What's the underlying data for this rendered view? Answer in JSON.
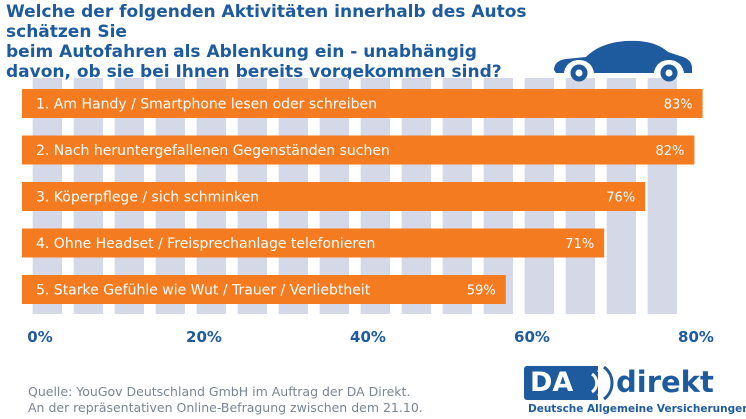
{
  "question": {
    "lines": [
      "Welche der folgenden Aktivitäten innerhalb des Autos schätzen Sie",
      "beim Autofahren als Ablenkung ein - unabhängig",
      "davon, ob sie bei Ihnen bereits vorgekommen sind?"
    ]
  },
  "icons": {
    "car": "car-silhouette-icon"
  },
  "chart_data": {
    "type": "bar",
    "orientation": "horizontal",
    "categories": [
      "1. Am Handy / Smartphone lesen oder schreiben",
      "2. Nach heruntergefallenen Gegenständen suchen",
      "3. Köperpflege / sich schminken",
      "4. Ohne Headset / Freisprechanlage telefonieren",
      "5. Starke Gefühle wie Wut / Trauer / Verliebtheit"
    ],
    "values": [
      83,
      82,
      76,
      71,
      59
    ],
    "value_labels": [
      "83%",
      "82%",
      "76%",
      "71%",
      "59%"
    ],
    "x_ticks": [
      0,
      20,
      40,
      60,
      80
    ],
    "x_tick_labels": [
      "0%",
      "20%",
      "40%",
      "60%",
      "80%"
    ],
    "xlim": [
      0,
      85
    ],
    "colors": {
      "bar": "#f47b20",
      "grid": "#d5d8e6",
      "accent": "#1d5b9e"
    }
  },
  "source": {
    "lines": [
      "Quelle: YouGov Deutschland GmbH im Auftrag der DA Direkt.",
      "An der repräsentativen Online-Befragung zwischen dem 21.10."
    ]
  },
  "logo": {
    "da": "DA",
    "direkt": "direkt",
    "tagline": "Deutsche Allgemeine Versicherungen"
  }
}
